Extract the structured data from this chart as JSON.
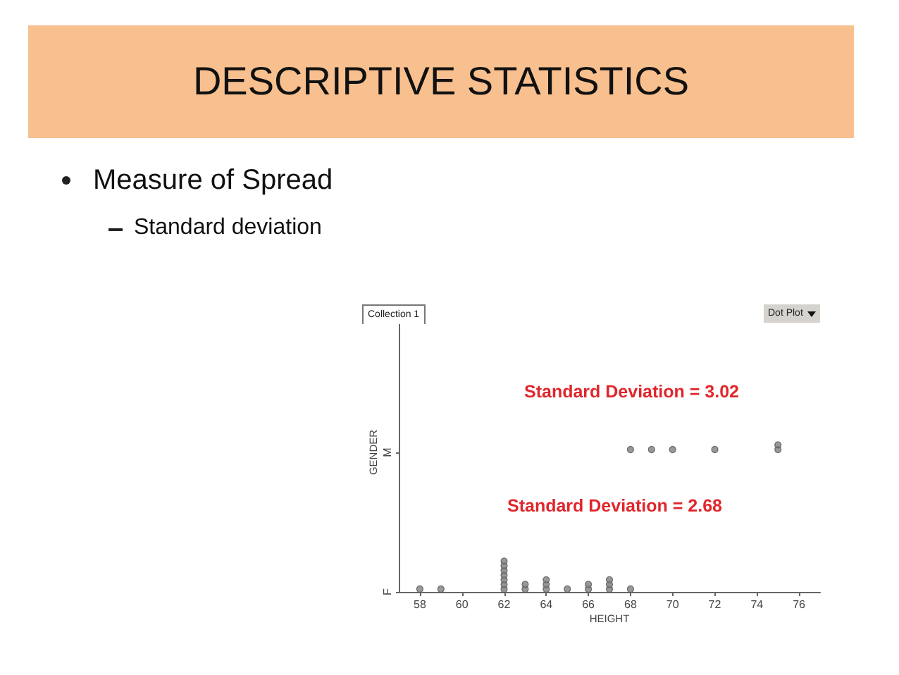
{
  "chart_data": {
    "type": "scatter",
    "title": "DESCRIPTIVE STATISTICS",
    "subtitle": "Measure of Spread",
    "xlabel": "HEIGHT",
    "ylabel": "GENDER",
    "orientation": "horizontal",
    "categories": [
      "M",
      "F"
    ],
    "series": [
      {
        "color": "#808080",
        "values": [
          68,
          58
        ]
      },
      {
        "color": "#808080",
        "values": [
          69,
          59
        ]
      },
      {
        "color": "#808080",
        "values": [
          70,
          62
        ]
      },
      {
        "color": "#808080",
        "values": [
          72,
          62
        ]
      },
      {
        "color": "#808080",
        "values": [
          75,
          62
        ]
      },
      {
        "color": "#808080",
        "values": [
          75,
          62
        ]
      },
      {
        "color": "#808080",
        "values": [
          null,
          62
        ]
      },
      {
        "color": "#808080",
        "values": [
          null,
          62
        ]
      },
      {
        "color": "#808080",
        "values": [
          null,
          62
        ]
      },
      {
        "color": "#808080",
        "values": [
          null,
          63
        ]
      },
      {
        "color": "#808080",
        "values": [
          null,
          63
        ]
      },
      {
        "color": "#808080",
        "values": [
          null,
          64
        ]
      },
      {
        "color": "#808080",
        "values": [
          null,
          64
        ]
      },
      {
        "color": "#808080",
        "values": [
          null,
          64
        ]
      },
      {
        "color": "#808080",
        "values": [
          null,
          65
        ]
      },
      {
        "color": "#808080",
        "values": [
          null,
          66
        ]
      },
      {
        "color": "#808080",
        "values": [
          null,
          66
        ]
      },
      {
        "color": "#808080",
        "values": [
          null,
          67
        ]
      },
      {
        "color": "#808080",
        "values": [
          null,
          67
        ]
      },
      {
        "color": "#808080",
        "values": [
          null,
          67
        ]
      },
      {
        "color": "#808080",
        "values": [
          null,
          68
        ]
      }
    ],
    "xlim": [
      57,
      77
    ],
    "xticks": [
      58,
      60,
      62,
      64,
      66,
      68,
      70,
      72,
      74,
      76
    ],
    "marker": "circle",
    "grid": false,
    "annotations": [
      "Standard deviation",
      "Collection 1",
      "Dot Plot",
      "Standard Deviation = 3.02",
      "Standard Deviation = 2.68"
    ]
  }
}
